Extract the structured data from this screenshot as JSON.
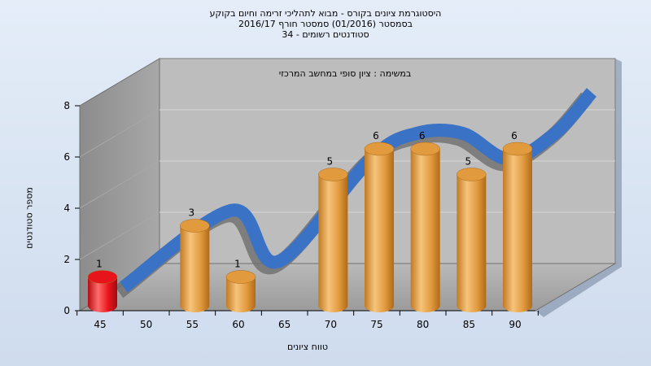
{
  "titles": {
    "line1": "היסטוגרמת ציונים בקורס - מבוא לתהליכי זרימה וחיום בקוקע",
    "line2": "בסמסטר  (01/2016)  סמסטר חורף 2016/17",
    "line3": "סטודנטים רשומים - 34"
  },
  "chart_data": {
    "type": "bar",
    "subtitle": "במשימה : ציון סופי במחשב המרכזי",
    "xlabel": "טווח ציונים",
    "ylabel": "מספר סטודנטים",
    "x_ticks": [
      "45",
      "50",
      "55",
      "60",
      "65",
      "70",
      "75",
      "80",
      "85",
      "90"
    ],
    "y_ticks": [
      "0",
      "2",
      "4",
      "6",
      "8"
    ],
    "ylim": [
      0,
      8
    ],
    "bars": [
      {
        "x": 45,
        "value": 1,
        "label": "1",
        "color": "#e8141b"
      },
      {
        "x": 55,
        "value": 3,
        "label": "3",
        "color": "#e9a24a"
      },
      {
        "x": 60,
        "value": 1,
        "label": "1",
        "color": "#e9a24a"
      },
      {
        "x": 70,
        "value": 5,
        "label": "5",
        "color": "#e9a24a"
      },
      {
        "x": 75,
        "value": 6,
        "label": "6",
        "color": "#e9a24a"
      },
      {
        "x": 80,
        "value": 6,
        "label": "6",
        "color": "#e9a24a"
      },
      {
        "x": 85,
        "value": 5,
        "label": "5",
        "color": "#e9a24a"
      },
      {
        "x": 90,
        "value": 6,
        "label": "6",
        "color": "#e9a24a"
      }
    ],
    "ribbon_color": "#3a72c6",
    "grid": true
  }
}
